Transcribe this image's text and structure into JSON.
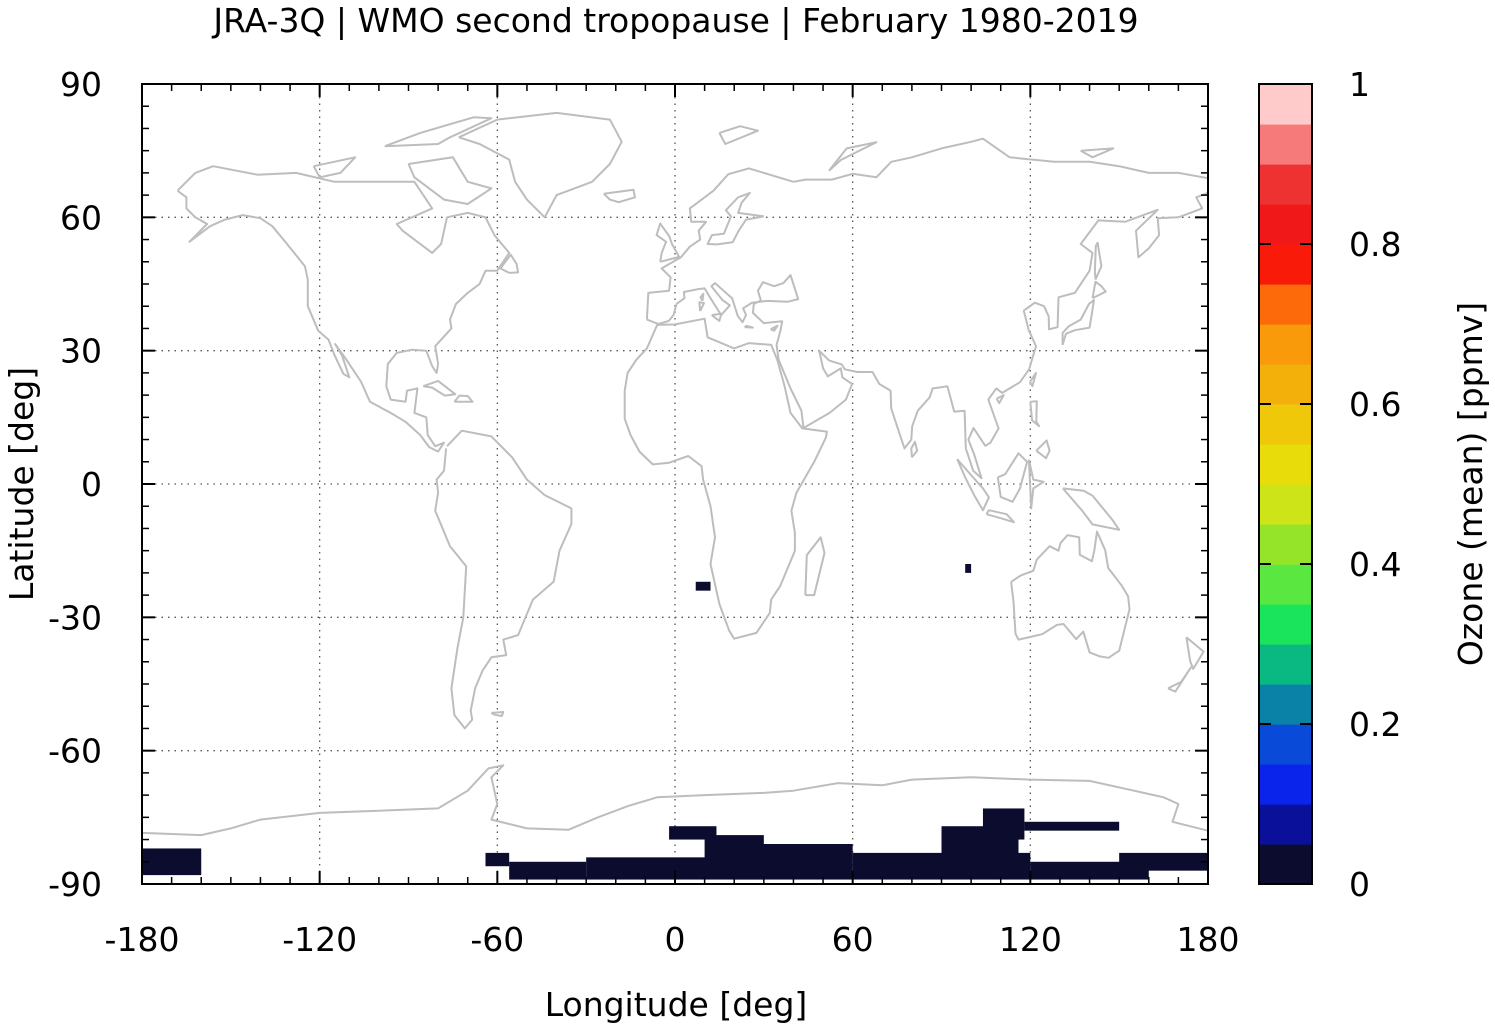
{
  "chart_data": {
    "type": "heatmap",
    "title": "JRA-3Q | WMO second tropopause | February 1980-2019",
    "xlabel": "Longitude [deg]",
    "ylabel": "Latitude [deg]",
    "colorbar_label": "Ozone (mean) [ppmv]",
    "xlim": [
      -180,
      180
    ],
    "ylim": [
      -90,
      90
    ],
    "xticks": [
      -180,
      -120,
      -60,
      0,
      60,
      120,
      180
    ],
    "yticks": [
      -90,
      -60,
      -30,
      0,
      30,
      60,
      90
    ],
    "colorbar": {
      "range": [
        0,
        1
      ],
      "ticks": [
        0,
        0.2,
        0.4,
        0.6,
        0.8,
        1
      ],
      "tick_labels": [
        "0",
        "0.2",
        "0.4",
        "0.6",
        "0.8",
        "1"
      ],
      "colors": [
        "#0c0c2e",
        "#0a109a",
        "#0a24ec",
        "#0a4ad8",
        "#0a82a8",
        "#0ab882",
        "#1ae45c",
        "#5ae840",
        "#96e42a",
        "#cce418",
        "#e8dc0a",
        "#f0c80a",
        "#f4b00a",
        "#f89a0a",
        "#fc6a0a",
        "#fa1a0a",
        "#f01818",
        "#ee3232",
        "#f67a7a",
        "#ffcaca"
      ]
    },
    "grid": true,
    "coastline_color": "#bdbdbd",
    "data_patches": [
      {
        "lon": [
          -180,
          -160
        ],
        "lat": [
          -82,
          -88
        ],
        "value": 0.0
      },
      {
        "lon": [
          -64,
          -56
        ],
        "lat": [
          -83,
          -86
        ],
        "value": 0.0
      },
      {
        "lon": [
          -56,
          -30
        ],
        "lat": [
          -85,
          -89
        ],
        "value": 0.0
      },
      {
        "lon": [
          -2,
          14
        ],
        "lat": [
          -77,
          -80
        ],
        "value": 0.0
      },
      {
        "lon": [
          -30,
          30
        ],
        "lat": [
          -84,
          -89
        ],
        "value": 0.0
      },
      {
        "lon": [
          10,
          30
        ],
        "lat": [
          -79,
          -86
        ],
        "value": 0.0
      },
      {
        "lon": [
          20,
          60
        ],
        "lat": [
          -81,
          -89
        ],
        "value": 0.0
      },
      {
        "lon": [
          60,
          120
        ],
        "lat": [
          -83,
          -89
        ],
        "value": 0.0
      },
      {
        "lon": [
          90,
          116
        ],
        "lat": [
          -77,
          -86
        ],
        "value": 0.0
      },
      {
        "lon": [
          104,
          118
        ],
        "lat": [
          -73,
          -80
        ],
        "value": 0.0
      },
      {
        "lon": [
          118,
          150
        ],
        "lat": [
          -76,
          -78
        ],
        "value": 0.0
      },
      {
        "lon": [
          150,
          180
        ],
        "lat": [
          -83,
          -87
        ],
        "value": 0.0
      },
      {
        "lon": [
          120,
          160
        ],
        "lat": [
          -85,
          -89
        ],
        "value": 0.0
      },
      {
        "lon": [
          98,
          100
        ],
        "lat": [
          -18,
          -20
        ],
        "value": 0.0
      },
      {
        "lon": [
          7,
          12
        ],
        "lat": [
          -22,
          -24
        ],
        "value": 0.0
      }
    ]
  }
}
